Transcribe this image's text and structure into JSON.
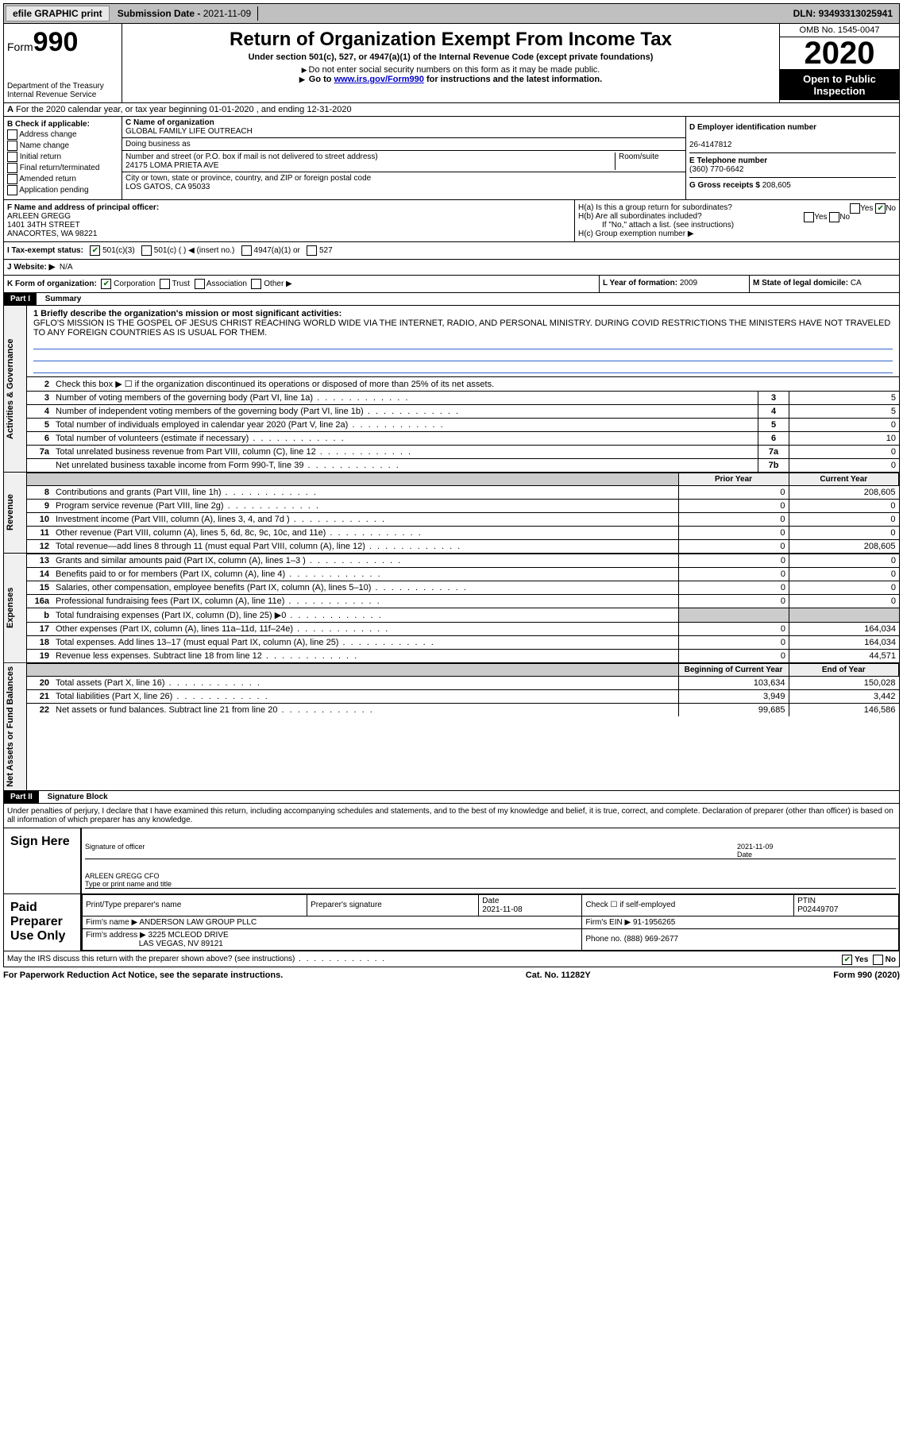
{
  "topbar": {
    "efile": "efile GRAPHIC print",
    "submission_label": "Submission Date - ",
    "submission_date": "2021-11-09",
    "dln_label": "DLN: ",
    "dln": "93493313025941"
  },
  "header": {
    "form_prefix": "Form",
    "form_number": "990",
    "dept": "Department of the Treasury\nInternal Revenue Service",
    "title": "Return of Organization Exempt From Income Tax",
    "subtitle": "Under section 501(c), 527, or 4947(a)(1) of the Internal Revenue Code (except private foundations)",
    "warn1": "Do not enter social security numbers on this form as it may be made public.",
    "warn2_pre": "Go to ",
    "warn2_link": "www.irs.gov/Form990",
    "warn2_post": " for instructions and the latest information.",
    "omb": "OMB No. 1545-0047",
    "year": "2020",
    "open": "Open to Public Inspection"
  },
  "row_a": "For the 2020 calendar year, or tax year beginning 01-01-2020   , and ending 12-31-2020",
  "section_b": {
    "label": "B Check if applicable:",
    "items": [
      "Address change",
      "Name change",
      "Initial return",
      "Final return/terminated",
      "Amended return",
      "Application pending"
    ]
  },
  "section_c": {
    "name_label": "C Name of organization",
    "name": "GLOBAL FAMILY LIFE OUTREACH",
    "dba_label": "Doing business as",
    "dba": "",
    "street_label": "Number and street (or P.O. box if mail is not delivered to street address)",
    "room_label": "Room/suite",
    "street": "24175 LOMA PRIETA AVE",
    "city_label": "City or town, state or province, country, and ZIP or foreign postal code",
    "city": "LOS GATOS, CA  95033"
  },
  "section_d": {
    "ein_label": "D Employer identification number",
    "ein": "26-4147812",
    "phone_label": "E Telephone number",
    "phone": "(360) 770-6642",
    "gross_label": "G Gross receipts $ ",
    "gross": "208,605"
  },
  "section_f": {
    "label": "F Name and address of principal officer:",
    "name": "ARLEEN GREGG",
    "street": "1401 34TH STREET",
    "city": "ANACORTES, WA  98221"
  },
  "section_h": {
    "ha": "H(a)  Is this a group return for subordinates?",
    "hb": "H(b)  Are all subordinates included?",
    "hb_note": "If \"No,\" attach a list. (see instructions)",
    "hc": "H(c)  Group exemption number ▶",
    "yes": "Yes",
    "no": "No"
  },
  "section_i": {
    "label": "I  Tax-exempt status:",
    "opts": [
      "501(c)(3)",
      "501(c) (  ) ◀ (insert no.)",
      "4947(a)(1) or",
      "527"
    ]
  },
  "section_j": {
    "label": "J  Website: ▶",
    "value": "N/A"
  },
  "section_k": {
    "label": "K Form of organization:",
    "opts": [
      "Corporation",
      "Trust",
      "Association",
      "Other ▶"
    ]
  },
  "section_lm": {
    "l_label": "L Year of formation: ",
    "l_val": "2009",
    "m_label": "M State of legal domicile: ",
    "m_val": "CA"
  },
  "part1": {
    "tag": "Part I",
    "title": "Summary",
    "line1_label": "1  Briefly describe the organization's mission or most significant activities:",
    "mission": "GFLO'S MISSION IS THE GOSPEL OF JESUS CHRIST REACHING WORLD WIDE VIA THE INTERNET, RADIO, AND PERSONAL MINISTRY. DURING COVID RESTRICTIONS THE MINISTERS HAVE NOT TRAVELED TO ANY FOREIGN COUNTRIES AS IS USUAL FOR THEM.",
    "line2": "Check this box ▶ ☐  if the organization discontinued its operations or disposed of more than 25% of its net assets.",
    "gov_rows": [
      {
        "n": "3",
        "d": "Number of voting members of the governing body (Part VI, line 1a)",
        "b": "3",
        "v": "5"
      },
      {
        "n": "4",
        "d": "Number of independent voting members of the governing body (Part VI, line 1b)",
        "b": "4",
        "v": "5"
      },
      {
        "n": "5",
        "d": "Total number of individuals employed in calendar year 2020 (Part V, line 2a)",
        "b": "5",
        "v": "0"
      },
      {
        "n": "6",
        "d": "Total number of volunteers (estimate if necessary)",
        "b": "6",
        "v": "10"
      },
      {
        "n": "7a",
        "d": "Total unrelated business revenue from Part VIII, column (C), line 12",
        "b": "7a",
        "v": "0"
      },
      {
        "n": "",
        "d": "Net unrelated business taxable income from Form 990-T, line 39",
        "b": "7b",
        "v": "0"
      }
    ],
    "col_prior": "Prior Year",
    "col_current": "Current Year",
    "rev_rows": [
      {
        "n": "8",
        "d": "Contributions and grants (Part VIII, line 1h)",
        "p": "0",
        "c": "208,605"
      },
      {
        "n": "9",
        "d": "Program service revenue (Part VIII, line 2g)",
        "p": "0",
        "c": "0"
      },
      {
        "n": "10",
        "d": "Investment income (Part VIII, column (A), lines 3, 4, and 7d )",
        "p": "0",
        "c": "0"
      },
      {
        "n": "11",
        "d": "Other revenue (Part VIII, column (A), lines 5, 6d, 8c, 9c, 10c, and 11e)",
        "p": "0",
        "c": "0"
      },
      {
        "n": "12",
        "d": "Total revenue—add lines 8 through 11 (must equal Part VIII, column (A), line 12)",
        "p": "0",
        "c": "208,605"
      }
    ],
    "exp_rows": [
      {
        "n": "13",
        "d": "Grants and similar amounts paid (Part IX, column (A), lines 1–3 )",
        "p": "0",
        "c": "0"
      },
      {
        "n": "14",
        "d": "Benefits paid to or for members (Part IX, column (A), line 4)",
        "p": "0",
        "c": "0"
      },
      {
        "n": "15",
        "d": "Salaries, other compensation, employee benefits (Part IX, column (A), lines 5–10)",
        "p": "0",
        "c": "0"
      },
      {
        "n": "16a",
        "d": "Professional fundraising fees (Part IX, column (A), line 11e)",
        "p": "0",
        "c": "0"
      },
      {
        "n": "b",
        "d": "Total fundraising expenses (Part IX, column (D), line 25) ▶0",
        "p": "",
        "c": "",
        "shade": true
      },
      {
        "n": "17",
        "d": "Other expenses (Part IX, column (A), lines 11a–11d, 11f–24e)",
        "p": "0",
        "c": "164,034"
      },
      {
        "n": "18",
        "d": "Total expenses. Add lines 13–17 (must equal Part IX, column (A), line 25)",
        "p": "0",
        "c": "164,034"
      },
      {
        "n": "19",
        "d": "Revenue less expenses. Subtract line 18 from line 12",
        "p": "0",
        "c": "44,571"
      }
    ],
    "col_begin": "Beginning of Current Year",
    "col_end": "End of Year",
    "net_rows": [
      {
        "n": "20",
        "d": "Total assets (Part X, line 16)",
        "p": "103,634",
        "c": "150,028"
      },
      {
        "n": "21",
        "d": "Total liabilities (Part X, line 26)",
        "p": "3,949",
        "c": "3,442"
      },
      {
        "n": "22",
        "d": "Net assets or fund balances. Subtract line 21 from line 20",
        "p": "99,685",
        "c": "146,586"
      }
    ],
    "side_gov": "Activities & Governance",
    "side_rev": "Revenue",
    "side_exp": "Expenses",
    "side_net": "Net Assets or Fund Balances"
  },
  "part2": {
    "tag": "Part II",
    "title": "Signature Block",
    "decl": "Under penalties of perjury, I declare that I have examined this return, including accompanying schedules and statements, and to the best of my knowledge and belief, it is true, correct, and complete. Declaration of preparer (other than officer) is based on all information of which preparer has any knowledge.",
    "sign_here": "Sign Here",
    "sig_officer": "Signature of officer",
    "sig_date": "2021-11-09",
    "date_label": "Date",
    "officer_name": "ARLEEN GREGG CFO",
    "type_name": "Type or print name and title",
    "paid_prep": "Paid Preparer Use Only",
    "prep_headers": [
      "Print/Type preparer's name",
      "Preparer's signature",
      "Date",
      "Check ☐ if self-employed",
      "PTIN"
    ],
    "prep_date": "2021-11-08",
    "ptin": "P02449707",
    "firm_name_label": "Firm's name    ▶ ",
    "firm_name": "ANDERSON LAW GROUP PLLC",
    "firm_ein_label": "Firm's EIN ▶ ",
    "firm_ein": "91-1956265",
    "firm_addr_label": "Firm's address ▶ ",
    "firm_addr": "3225 MCLEOD DRIVE",
    "firm_city": "LAS VEGAS, NV  89121",
    "phone_label": "Phone no. ",
    "phone": "(888) 969-2677",
    "discuss": "May the IRS discuss this return with the preparer shown above? (see instructions)",
    "yes": "Yes",
    "no": "No"
  },
  "footer": {
    "left": "For Paperwork Reduction Act Notice, see the separate instructions.",
    "mid": "Cat. No. 11282Y",
    "right": "Form 990 (2020)"
  }
}
